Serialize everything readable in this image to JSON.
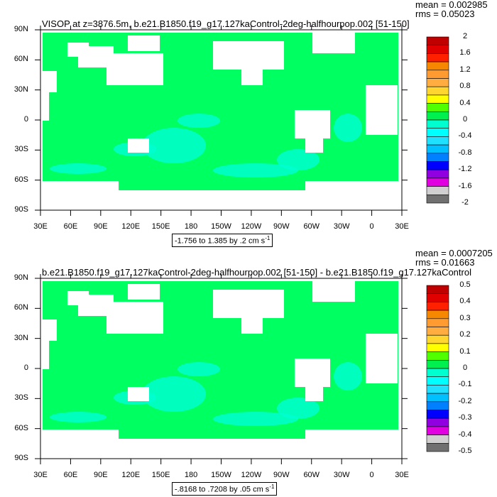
{
  "chart_data": [
    {
      "type": "heatmap",
      "title": "VISOP at z=3876.5m, b.e21.B1850.f19_g17.127kaControl-2deg-halfhourpop.002 [51-150]",
      "mean_label": "mean = 0.002985",
      "rms_label": "rms = 0.05023",
      "range_label": "-1.756 to 1.385 by .2 cm s",
      "range_sup": "-1",
      "xticks": [
        "30E",
        "60E",
        "90E",
        "120E",
        "150E",
        "180",
        "150W",
        "120W",
        "90W",
        "60W",
        "30W",
        "0",
        "30E"
      ],
      "yticks": [
        "90N",
        "60N",
        "30N",
        "0",
        "30S",
        "60S",
        "90S"
      ],
      "colorbar_labels": [
        "2",
        "1.6",
        "1.2",
        "0.8",
        "0.4",
        "0",
        "-0.4",
        "-0.8",
        "-1.2",
        "-1.6",
        "-2"
      ]
    },
    {
      "type": "heatmap",
      "title": "b.e21.B1850.f19_g17.127kaControl-2deg-halfhourpop.002 [51-150] - b.e21.B1850.f19_g17.127kaControl",
      "mean_label": "mean = 0.0007205",
      "rms_label": "rms = 0.01663",
      "range_label": "-.8168 to .7208 by .05 cm s",
      "range_sup": "-1",
      "xticks": [
        "30E",
        "60E",
        "90E",
        "120E",
        "150E",
        "180",
        "150W",
        "120W",
        "90W",
        "60W",
        "30W",
        "0",
        "30E"
      ],
      "yticks": [
        "90N",
        "60N",
        "30N",
        "0",
        "30S",
        "60S",
        "90S"
      ],
      "colorbar_labels": [
        "0.5",
        "0.4",
        "0.3",
        "0.2",
        "0.1",
        "0",
        "-0.1",
        "-0.2",
        "-0.3",
        "-0.4",
        "-0.5"
      ]
    }
  ],
  "colors": [
    "#c00000",
    "#e00000",
    "#ff2000",
    "#f58800",
    "#ff9b30",
    "#ffac40",
    "#ffd530",
    "#ffff00",
    "#50ff00",
    "#00f050",
    "#00ffd0",
    "#00ffff",
    "#20e0ff",
    "#00c0ff",
    "#0080ff",
    "#0000ff",
    "#9000e0",
    "#e000e0",
    "#d0d0d0",
    "#707070"
  ]
}
